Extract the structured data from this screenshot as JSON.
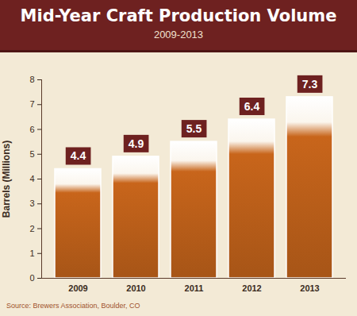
{
  "chart_data": {
    "type": "bar",
    "title": "Mid-Year Craft Production Volume",
    "subtitle": "2009-2013",
    "y_label": "Barrels (Millions)",
    "source": "Source: Brewers Association, Boulder, CO",
    "categories": [
      "2009",
      "2010",
      "2011",
      "2012",
      "2013"
    ],
    "values": [
      4.4,
      4.9,
      5.5,
      6.4,
      7.3
    ],
    "color": "#c8651b",
    "ylim": [
      0,
      8
    ],
    "yticks": [
      0,
      1,
      2,
      3,
      4,
      5,
      6,
      7,
      8
    ],
    "grid": false,
    "data_labels": true
  }
}
